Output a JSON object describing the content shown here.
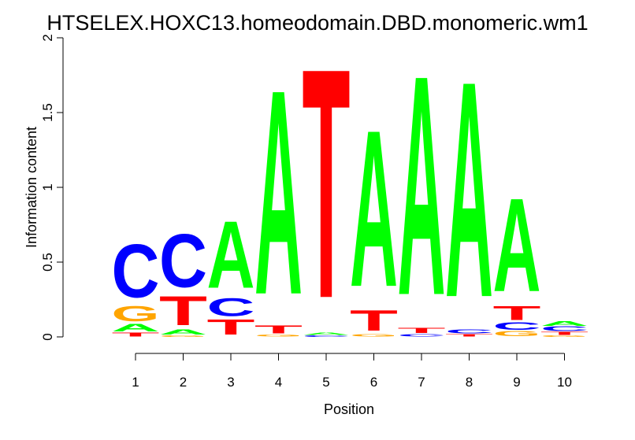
{
  "chart_data": {
    "type": "sequence-logo",
    "title": "HTSELEX.HOXC13.homeodomain.DBD.monomeric.wm1",
    "xlabel": "Position",
    "ylabel": "Information content",
    "ylim": [
      0,
      2
    ],
    "yticks": [
      "0",
      "0.5",
      "1",
      "1.5",
      "2"
    ],
    "positions": [
      "1",
      "2",
      "3",
      "4",
      "5",
      "6",
      "7",
      "8",
      "9",
      "10"
    ],
    "colors": {
      "A": "#00ff00",
      "C": "#0000ff",
      "G": "#ffa500",
      "T": "#ff0000"
    },
    "columns": [
      {
        "position": "1",
        "letters": [
          {
            "base": "T",
            "height": 0.03
          },
          {
            "base": "A",
            "height": 0.06
          },
          {
            "base": "G",
            "height": 0.12
          },
          {
            "base": "C",
            "height": 0.42
          }
        ]
      },
      {
        "position": "2",
        "letters": [
          {
            "base": "G",
            "height": 0.01
          },
          {
            "base": "A",
            "height": 0.04
          },
          {
            "base": "T",
            "height": 0.23
          },
          {
            "base": "C",
            "height": 0.42
          }
        ]
      },
      {
        "position": "3",
        "letters": [
          {
            "base": "T",
            "height": 0.12
          },
          {
            "base": "C",
            "height": 0.14
          },
          {
            "base": "A",
            "height": 0.53
          }
        ]
      },
      {
        "position": "4",
        "letters": [
          {
            "base": "G",
            "height": 0.015
          },
          {
            "base": "T",
            "height": 0.065
          },
          {
            "base": "A",
            "height": 1.62
          }
        ]
      },
      {
        "position": "5",
        "letters": [
          {
            "base": "C",
            "height": 0.01
          },
          {
            "base": "A",
            "height": 0.02
          },
          {
            "base": "T",
            "height": 1.82
          }
        ]
      },
      {
        "position": "6",
        "letters": [
          {
            "base": "G",
            "height": 0.02
          },
          {
            "base": "T",
            "height": 0.16
          },
          {
            "base": "A",
            "height": 1.24
          }
        ]
      },
      {
        "position": "7",
        "letters": [
          {
            "base": "C",
            "height": 0.02
          },
          {
            "base": "T",
            "height": 0.04
          },
          {
            "base": "A",
            "height": 1.74
          }
        ]
      },
      {
        "position": "8",
        "letters": [
          {
            "base": "T",
            "height": 0.02
          },
          {
            "base": "C",
            "height": 0.03
          },
          {
            "base": "A",
            "height": 1.71
          }
        ]
      },
      {
        "position": "9",
        "letters": [
          {
            "base": "G",
            "height": 0.04
          },
          {
            "base": "C",
            "height": 0.06
          },
          {
            "base": "T",
            "height": 0.11
          },
          {
            "base": "A",
            "height": 0.74
          }
        ]
      },
      {
        "position": "10",
        "letters": [
          {
            "base": "G",
            "height": 0.01
          },
          {
            "base": "T",
            "height": 0.025
          },
          {
            "base": "C",
            "height": 0.035
          },
          {
            "base": "A",
            "height": 0.035
          }
        ]
      }
    ]
  }
}
